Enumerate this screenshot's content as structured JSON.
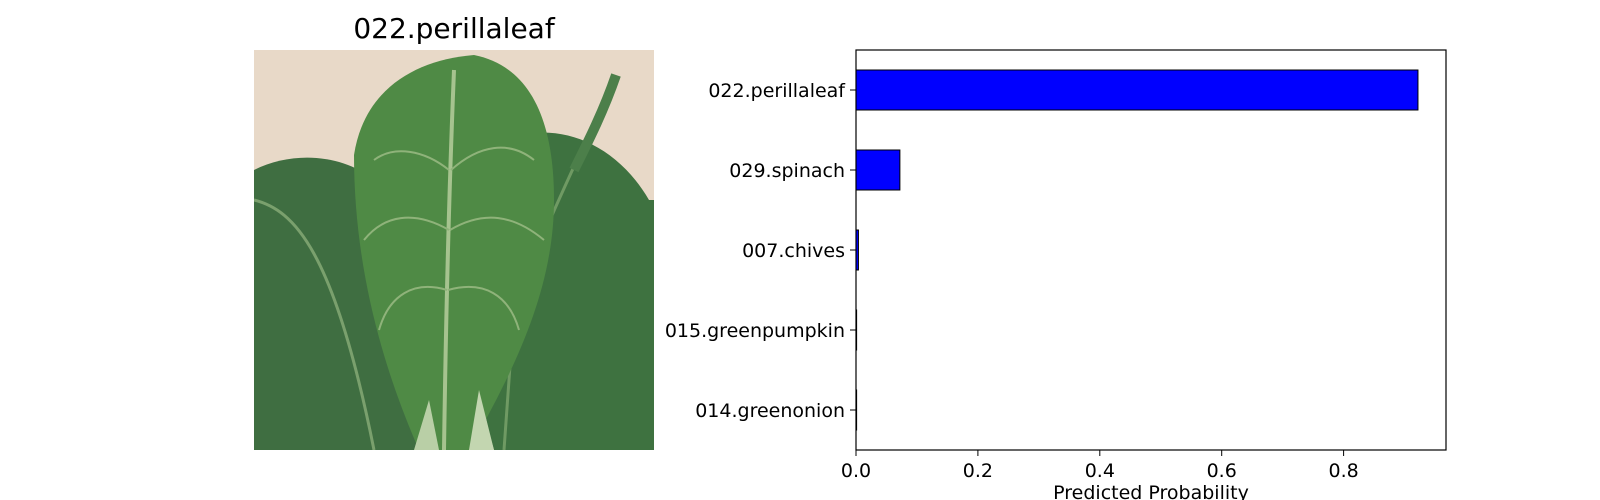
{
  "image_panel": {
    "title": "022.perillaleaf",
    "photo_icon": "perilla-leaf-photo"
  },
  "chart_data": {
    "type": "bar",
    "orientation": "horizontal",
    "categories": [
      "022.perillaleaf",
      "029.spinach",
      "007.chives",
      "015.greenpumpkin",
      "014.greenonion"
    ],
    "values": [
      0.922,
      0.072,
      0.004,
      0.001,
      0.001
    ],
    "xlabel": "Predicted Probability",
    "ylabel": "",
    "xlim": [
      0,
      0.968
    ],
    "xticks": [
      0.0,
      0.2,
      0.4,
      0.6,
      0.8
    ],
    "xtick_labels": [
      "0.0",
      "0.2",
      "0.4",
      "0.6",
      "0.8"
    ],
    "bar_color": "#0000ff",
    "edge_color": "#000000",
    "grid": false,
    "legend": "none"
  }
}
